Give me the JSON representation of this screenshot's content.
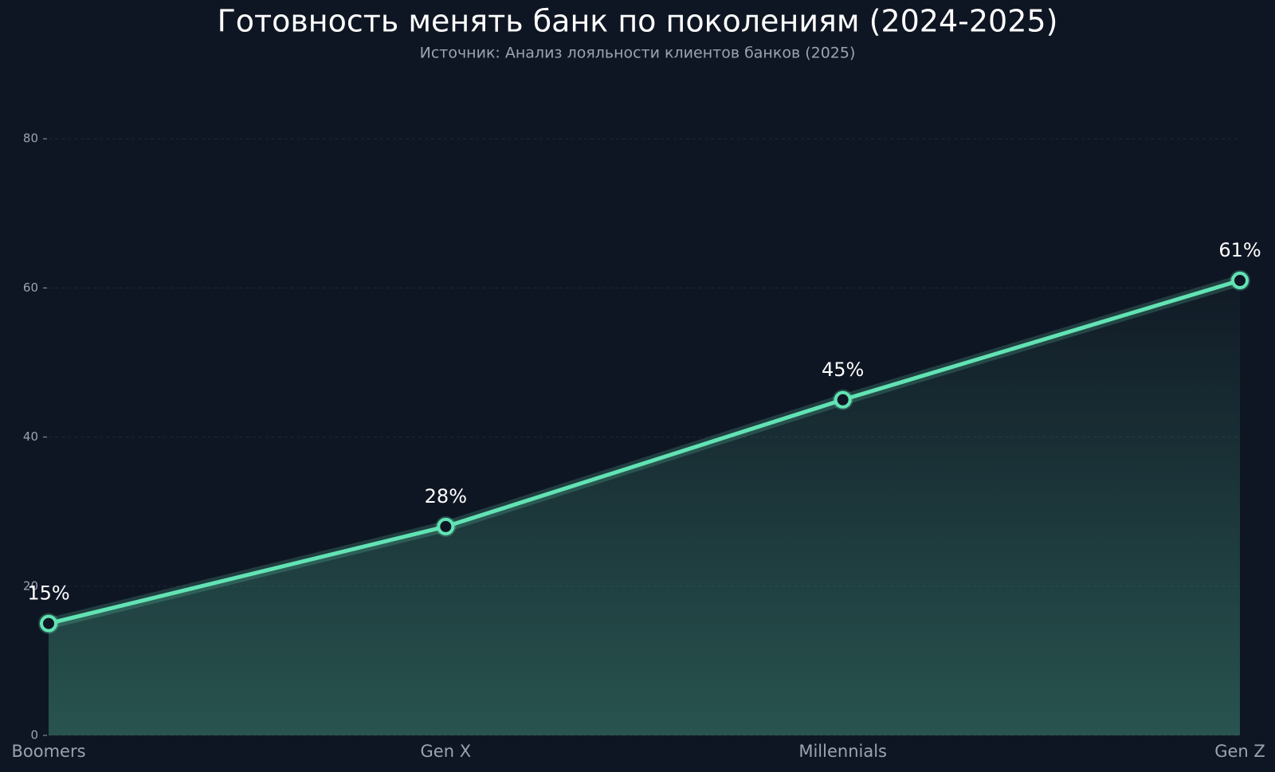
{
  "chart_data": {
    "type": "line",
    "title": "Готовность менять банк по поколениям (2024-2025)",
    "subtitle": "Источник: Анализ лояльности клиентов банков (2025)",
    "categories": [
      "Boomers",
      "Gen X",
      "Millennials",
      "Gen Z"
    ],
    "values": [
      15,
      28,
      45,
      61
    ],
    "value_labels": [
      "15%",
      "28%",
      "45%",
      "61%"
    ],
    "color": "#62e3b4",
    "ylim": [
      0,
      90
    ],
    "yticks": [
      0,
      20,
      40,
      60,
      80
    ],
    "grid": true
  }
}
